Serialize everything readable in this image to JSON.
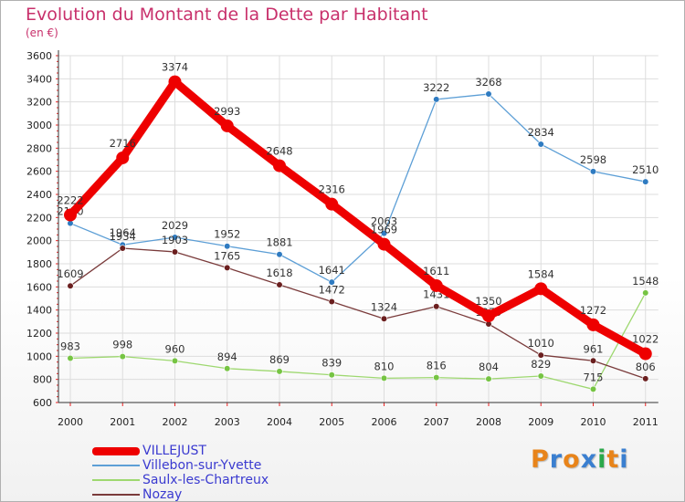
{
  "header": {
    "title": "Evolution du Montant de la Dette par Habitant",
    "subtitle": "(en €)"
  },
  "colors": {
    "title": "#c8306b",
    "legend_text": "#3a3ad0",
    "axis": "#333333",
    "grid": "#dddddd",
    "tick_marks": "#ee2222"
  },
  "chart_data": {
    "type": "line",
    "title": "Evolution du Montant de la Dette par Habitant",
    "subtitle": "(en €)",
    "x": [
      "2000",
      "2001",
      "2002",
      "2003",
      "2004",
      "2005",
      "2006",
      "2007",
      "2008",
      "2009",
      "2010",
      "2011"
    ],
    "ylim": [
      600,
      3600
    ],
    "yticks": [
      600,
      800,
      1000,
      1200,
      1400,
      1600,
      1800,
      2000,
      2200,
      2400,
      2600,
      2800,
      3000,
      3200,
      3400,
      3600
    ],
    "grid": true,
    "legend_position": "bottom-left",
    "series": [
      {
        "name": "VILLEJUST",
        "values": [
          2222,
          2716,
          3374,
          2993,
          2648,
          2316,
          1969,
          1611,
          1350,
          1584,
          1272,
          1022
        ],
        "labels": [
          "2222",
          "2716",
          "3374",
          "2993",
          "2648",
          "2316",
          "1969",
          "1611",
          "1350",
          "1584",
          "1272",
          "1022"
        ],
        "color": "#ee0000",
        "marker": "#ee0000",
        "emphasis": true
      },
      {
        "name": "Villebon-sur-Yvette",
        "values": [
          2150,
          1964,
          2029,
          1952,
          1881,
          1641,
          2063,
          3222,
          3268,
          2834,
          2598,
          2510
        ],
        "labels": [
          "2150",
          "1964",
          "2029",
          "1952",
          "1881",
          "1641",
          "2063",
          "3222",
          "3268",
          "2834",
          "2598",
          "2510"
        ],
        "color": "#5d9fd6",
        "marker": "#2f7bc1",
        "emphasis": false
      },
      {
        "name": "Saulx-les-Chartreux",
        "values": [
          983,
          998,
          960,
          894,
          869,
          839,
          810,
          816,
          804,
          829,
          715,
          1548
        ],
        "labels": [
          "983",
          "998",
          "960",
          "894",
          "869",
          "839",
          "810",
          "816",
          "804",
          "829",
          "715",
          "1548"
        ],
        "color": "#9ed870",
        "marker": "#76c443",
        "emphasis": false
      },
      {
        "name": "Nozay",
        "values": [
          1609,
          1934,
          1903,
          1765,
          1618,
          1472,
          1324,
          1431,
          1279,
          1010,
          961,
          806
        ],
        "labels": [
          "1609",
          "1934",
          "1903",
          "1765",
          "1618",
          "1472",
          "1324",
          "1431",
          "1279",
          "1010",
          "961",
          "806"
        ],
        "color": "#7a3b3b",
        "marker": "#6b1f1f",
        "emphasis": false
      }
    ]
  },
  "legend": {
    "items": [
      {
        "label": "VILLEJUST"
      },
      {
        "label": "Villebon-sur-Yvette"
      },
      {
        "label": "Saulx-les-Chartreux"
      },
      {
        "label": "Nozay"
      }
    ]
  },
  "logo": {
    "text": "Proxiti",
    "letter_colors": [
      "#e8841a",
      "#3a7fd0",
      "#e8841a",
      "#3a7fd0",
      "#2aa84a",
      "#e8841a",
      "#3a7fd0"
    ]
  }
}
